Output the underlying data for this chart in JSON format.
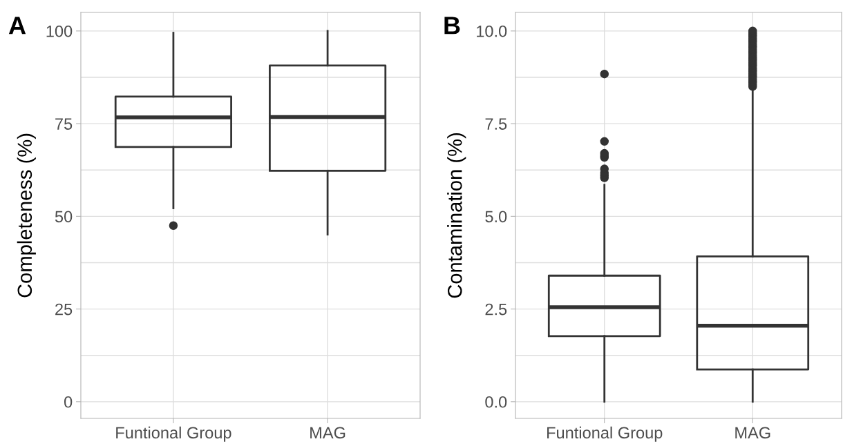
{
  "chart_data": [
    {
      "type": "box",
      "title": "A",
      "ylabel": "Completeness (%)",
      "categories": [
        "Funtional Group",
        "MAG"
      ],
      "ylim": [
        -4.5,
        105
      ],
      "yticks": [
        0,
        {
          "value": 12.5,
          "label": null
        },
        25,
        {
          "value": 37.5,
          "label": null
        },
        50,
        {
          "value": 62.5,
          "label": null
        },
        75,
        {
          "value": 87.5,
          "label": null
        },
        100
      ],
      "grid": true,
      "boxes": [
        {
          "low": 52.2,
          "q1": 68.7,
          "median": 76.7,
          "q3": 82.3,
          "high": 99.5,
          "outliers": [
            47.5
          ]
        },
        {
          "low": 45.1,
          "q1": 62.3,
          "median": 76.8,
          "q3": 90.7,
          "high": 100
        }
      ]
    },
    {
      "type": "box",
      "title": "B",
      "ylabel": "Contamination (%)",
      "categories": [
        "Funtional Group",
        "MAG"
      ],
      "ylim": [
        -0.45,
        10.5
      ],
      "yticks": [
        {
          "value": 0,
          "label": "0.0"
        },
        {
          "value": 1.25,
          "label": null
        },
        2.5,
        {
          "value": 3.75,
          "label": null
        },
        {
          "value": 5,
          "label": "5.0"
        },
        {
          "value": 6.25,
          "label": null
        },
        7.5,
        {
          "value": 8.75,
          "label": null
        },
        {
          "value": 10,
          "label": "10.0"
        }
      ],
      "grid": true,
      "boxes": [
        {
          "low": 0,
          "q1": 1.77,
          "median": 2.55,
          "q3": 3.4,
          "high": 5.85,
          "outliers": [
            6.04,
            6.1,
            6.17,
            6.28,
            6.59,
            6.65,
            6.7,
            7.02,
            8.84
          ]
        },
        {
          "low": 0,
          "q1": 0.87,
          "median": 2.05,
          "q3": 3.92,
          "high": 8.45,
          "outliers": [
            8.5,
            8.55,
            8.6,
            8.65,
            8.7,
            8.75,
            8.8,
            8.85,
            8.9,
            8.95,
            9.0,
            9.05,
            9.1,
            9.15,
            9.2,
            9.25,
            9.3,
            9.35,
            9.4,
            9.45,
            9.5,
            9.55,
            9.6,
            9.65,
            9.7,
            9.75,
            9.8,
            9.85,
            9.9,
            9.95,
            10.0
          ]
        }
      ]
    }
  ]
}
